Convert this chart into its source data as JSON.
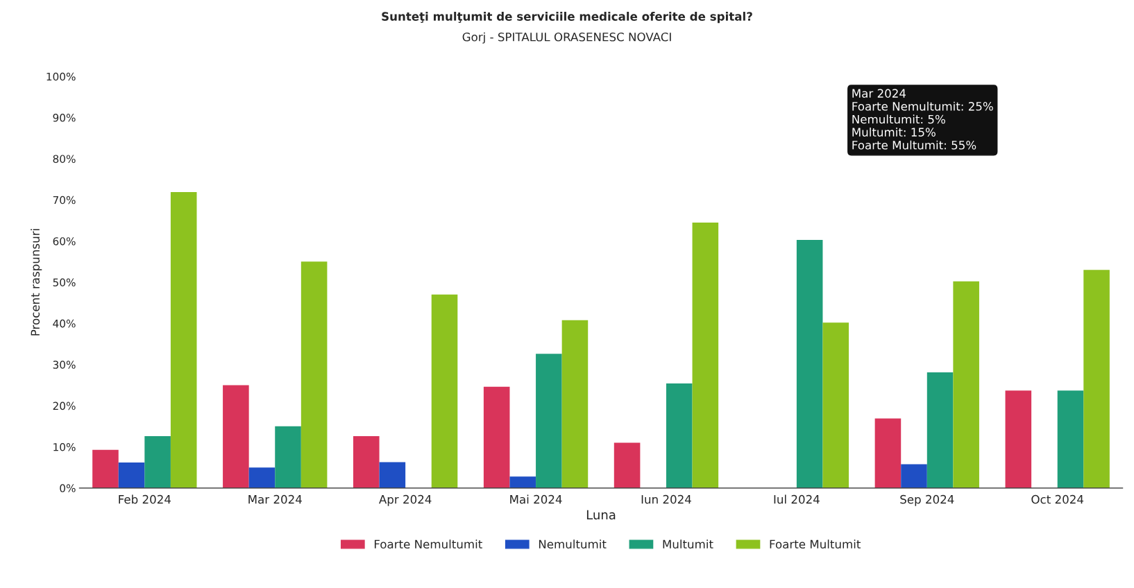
{
  "chart_data": {
    "type": "bar",
    "title": "Sunteţi mulţumit de serviciile medicale oferite de spital?",
    "subtitle": "Gorj - SPITALUL ORASENESC NOVACI",
    "xlabel": "Luna",
    "ylabel": "Procent raspunsuri",
    "categories": [
      "Feb 2024",
      "Mar 2024",
      "Apr 2024",
      "Mai 2024",
      "Iun 2024",
      "Iul 2024",
      "Sep 2024",
      "Oct 2024"
    ],
    "series": [
      {
        "name": "Foarte Nemultumit",
        "color": "#d9345a",
        "values": [
          9.3,
          25,
          12.6,
          24.6,
          11,
          0,
          16.9,
          23.7
        ]
      },
      {
        "name": "Nemultumit",
        "color": "#1f4fc4",
        "values": [
          6.2,
          5,
          6.3,
          2.8,
          0,
          0,
          5.8,
          0
        ]
      },
      {
        "name": "Multumit",
        "color": "#1f9e7a",
        "values": [
          12.6,
          15,
          null,
          32.6,
          25.4,
          60.3,
          28.1,
          23.7
        ]
      },
      {
        "name": "Foarte Multumit",
        "color": "#8dc21f",
        "values": [
          71.9,
          55,
          47,
          40.8,
          64.5,
          40.2,
          50.2,
          53
        ]
      }
    ],
    "ylim": [
      0,
      100
    ],
    "yticks": [
      {
        "value": 0,
        "label": "0%"
      },
      {
        "value": 10,
        "label": "10%"
      },
      {
        "value": 20,
        "label": "20%"
      },
      {
        "value": 30,
        "label": "30%"
      },
      {
        "value": 40,
        "label": "40%"
      },
      {
        "value": 50,
        "label": "50%"
      },
      {
        "value": 60,
        "label": "60%"
      },
      {
        "value": 70,
        "label": "70%"
      },
      {
        "value": 80,
        "label": "80%"
      },
      {
        "value": 90,
        "label": "90%"
      },
      {
        "value": 100,
        "label": "100%"
      }
    ],
    "grid": false,
    "legend": "bottom",
    "annotations": [
      "Mar 2024",
      "Foarte Nemultumit: 25%",
      "Nemultumit: 5%",
      "Multumit: 15%",
      "Foarte Multumit: 55%"
    ]
  }
}
